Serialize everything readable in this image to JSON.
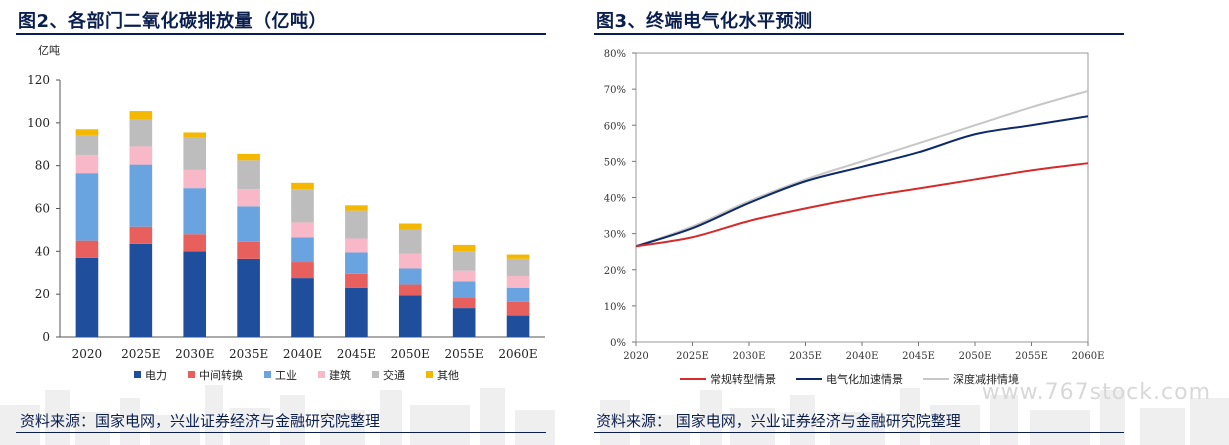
{
  "left": {
    "title": "图2、各部门二氧化碳排放量（亿吨）",
    "source": "资料来源：国家电网，兴业证券经济与金融研究院整理"
  },
  "right": {
    "title": "图3、终端电气化水平预测",
    "source": "资料来源： 国家电网，兴业证券经济与金融研究院整理"
  },
  "watermark": "www.767stock.com",
  "chart_data": [
    {
      "type": "bar",
      "stacked": true,
      "unit_label": "亿吨",
      "categories": [
        "2020",
        "2025E",
        "2030E",
        "2035E",
        "2040E",
        "2045E",
        "2050E",
        "2055E",
        "2060E"
      ],
      "ylim": [
        0,
        120
      ],
      "yticks": [
        0,
        20,
        40,
        60,
        80,
        100,
        120
      ],
      "grid": false,
      "legend_position": "bottom",
      "series": [
        {
          "name": "电力",
          "color": "#1f4e9c",
          "values": [
            37,
            43.5,
            40,
            36.5,
            27.5,
            23,
            19.5,
            13.5,
            10
          ]
        },
        {
          "name": "中间转换",
          "color": "#e8605e",
          "values": [
            8,
            8,
            8,
            8,
            7.5,
            6.5,
            5,
            5,
            6.5
          ]
        },
        {
          "name": "工业",
          "color": "#6aa4e0",
          "values": [
            31.5,
            29,
            21.5,
            16.5,
            11.5,
            10,
            7.5,
            7.5,
            6.5
          ]
        },
        {
          "name": "建筑",
          "color": "#f8b8c8",
          "values": [
            8.5,
            8.5,
            8.5,
            8,
            7,
            6.5,
            7,
            5,
            5.5
          ]
        },
        {
          "name": "交通",
          "color": "#bdbdbd",
          "values": [
            9,
            12.5,
            15,
            13.5,
            15.5,
            13,
            11,
            9,
            8
          ]
        },
        {
          "name": "其他",
          "color": "#f5b800",
          "values": [
            3,
            4,
            2.5,
            3,
            3,
            2.5,
            3,
            3,
            2
          ]
        }
      ]
    },
    {
      "type": "line",
      "x": [
        "2020",
        "2025E",
        "2030E",
        "2035E",
        "2040E",
        "2045E",
        "2050E",
        "2055E",
        "2060E"
      ],
      "ylim": [
        0,
        80
      ],
      "yticks": [
        "0%",
        "10%",
        "20%",
        "30%",
        "40%",
        "50%",
        "60%",
        "70%",
        "80%"
      ],
      "grid": false,
      "legend_position": "bottom",
      "series": [
        {
          "name": "常规转型情景",
          "color": "#d62b2b",
          "values": [
            26.5,
            29,
            33.5,
            37,
            40,
            42.5,
            45,
            47.5,
            49.5
          ]
        },
        {
          "name": "电气化加速情景",
          "color": "#0f2a6b",
          "values": [
            26.5,
            31.5,
            38.5,
            44.5,
            48.5,
            52.5,
            57.5,
            60,
            62.5
          ]
        },
        {
          "name": "深度减排情境",
          "color": "#c7c7c7",
          "values": [
            26.5,
            32,
            39,
            45,
            50,
            55,
            60,
            65,
            69.5
          ]
        }
      ]
    }
  ]
}
